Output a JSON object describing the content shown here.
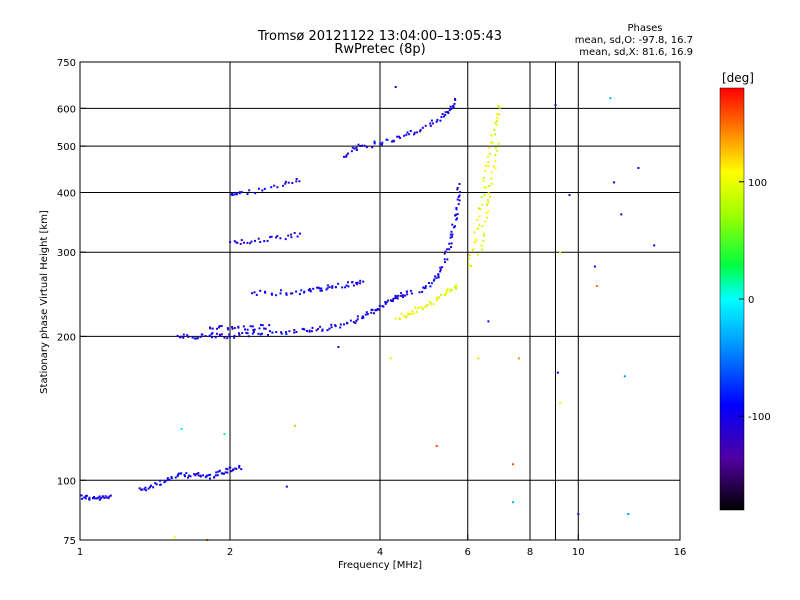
{
  "chart_data": {
    "type": "scatter",
    "title": "Tromsø 20121122 13:04:00–13:05:43",
    "subtitle": "RwPretec (8p)",
    "xlabel": "Frequency [MHz]",
    "ylabel": "Stationary phase Virtual Height [km]",
    "x_scale": "log",
    "y_scale": "log",
    "xlim": [
      1,
      16
    ],
    "ylim": [
      75,
      750
    ],
    "x_ticks": [
      1,
      2,
      4,
      6,
      8,
      10,
      16
    ],
    "x_tick_labels": [
      "1",
      "2",
      "4",
      "6",
      "8",
      "10",
      "16"
    ],
    "x_minor_ticks": [
      9
    ],
    "y_ticks": [
      75,
      100,
      200,
      300,
      400,
      500,
      600,
      750
    ],
    "y_tick_labels": [
      "75",
      "100",
      "200",
      "300",
      "400",
      "500",
      "600",
      "750"
    ],
    "grid": true,
    "stats": {
      "heading": "Phases",
      "line_o": "mean, sd,O: -97.8, 16.7",
      "line_x": "mean, sd,X:  81.6, 16.9"
    },
    "colorbar": {
      "label": "[deg]",
      "range": [
        -180,
        180
      ],
      "ticks": [
        100,
        0,
        -100
      ],
      "tick_labels": [
        "100",
        "0",
        "-100"
      ]
    },
    "traces": [
      {
        "kind": "curve",
        "phase": -100,
        "points": [
          [
            1.0,
            93
          ],
          [
            1.05,
            92
          ],
          [
            1.1,
            92
          ],
          [
            1.15,
            93
          ]
        ]
      },
      {
        "kind": "curve",
        "phase": -100,
        "points": [
          [
            1.3,
            96
          ],
          [
            1.4,
            98
          ],
          [
            1.5,
            101
          ],
          [
            1.6,
            103
          ],
          [
            1.7,
            103
          ],
          [
            1.8,
            102
          ],
          [
            1.9,
            104
          ],
          [
            2.0,
            106
          ],
          [
            2.1,
            107
          ]
        ]
      },
      {
        "kind": "curve",
        "phase": -100,
        "points": [
          [
            1.55,
            201
          ],
          [
            1.7,
            200
          ],
          [
            1.85,
            202
          ],
          [
            2.0,
            201
          ],
          [
            2.2,
            203
          ],
          [
            2.5,
            205
          ],
          [
            2.8,
            207
          ],
          [
            3.0,
            209
          ]
        ]
      },
      {
        "kind": "curve",
        "phase": -100,
        "points": [
          [
            1.8,
            208
          ],
          [
            2.0,
            210
          ],
          [
            2.2,
            209
          ],
          [
            2.4,
            211
          ]
        ]
      },
      {
        "kind": "curve",
        "phase": -100,
        "points": [
          [
            2.2,
            248
          ],
          [
            2.5,
            248
          ],
          [
            2.8,
            249
          ],
          [
            3.0,
            252
          ],
          [
            3.2,
            255
          ],
          [
            3.5,
            258
          ],
          [
            3.7,
            262
          ]
        ]
      },
      {
        "kind": "curve",
        "phase": -100,
        "points": [
          [
            2.0,
            315
          ],
          [
            2.2,
            318
          ],
          [
            2.5,
            322
          ],
          [
            2.8,
            330
          ]
        ]
      },
      {
        "kind": "curve",
        "phase": -100,
        "points": [
          [
            2.0,
            398
          ],
          [
            2.1,
            400
          ],
          [
            2.5,
            415
          ],
          [
            2.8,
            430
          ]
        ]
      },
      {
        "kind": "curve",
        "phase": -100,
        "points": [
          [
            3.0,
            208
          ],
          [
            3.3,
            212
          ],
          [
            3.6,
            218
          ],
          [
            3.8,
            225
          ],
          [
            4.0,
            232
          ],
          [
            4.2,
            240
          ],
          [
            4.4,
            245
          ],
          [
            4.6,
            250
          ]
        ]
      },
      {
        "kind": "curve",
        "phase": -100,
        "points": [
          [
            4.8,
            250
          ],
          [
            5.1,
            262
          ],
          [
            5.3,
            280
          ],
          [
            5.5,
            310
          ],
          [
            5.6,
            340
          ],
          [
            5.7,
            380
          ],
          [
            5.75,
            420
          ]
        ]
      },
      {
        "kind": "curve",
        "phase": -100,
        "points": [
          [
            3.4,
            480
          ],
          [
            3.6,
            500
          ],
          [
            4.0,
            510
          ],
          [
            4.4,
            525
          ],
          [
            4.8,
            545
          ],
          [
            5.2,
            570
          ],
          [
            5.5,
            600
          ],
          [
            5.7,
            630
          ]
        ]
      },
      {
        "kind": "curve",
        "phase": 100,
        "points": [
          [
            4.3,
            220
          ],
          [
            4.6,
            225
          ],
          [
            4.9,
            232
          ],
          [
            5.2,
            240
          ],
          [
            5.5,
            250
          ],
          [
            5.7,
            258
          ]
        ]
      },
      {
        "kind": "curve",
        "phase": 100,
        "points": [
          [
            6.0,
            280
          ],
          [
            6.2,
            330
          ],
          [
            6.4,
            400
          ],
          [
            6.6,
            480
          ],
          [
            6.8,
            560
          ],
          [
            6.9,
            620
          ]
        ]
      },
      {
        "kind": "curve",
        "phase": 100,
        "points": [
          [
            6.3,
            300
          ],
          [
            6.5,
            360
          ],
          [
            6.7,
            430
          ],
          [
            6.9,
            520
          ]
        ]
      }
    ],
    "scatter_points": [
      {
        "x": 1.55,
        "y": 76,
        "phase": 110
      },
      {
        "x": 1.8,
        "y": 75,
        "phase": 150
      },
      {
        "x": 1.6,
        "y": 128,
        "phase": 0
      },
      {
        "x": 1.95,
        "y": 125,
        "phase": 20
      },
      {
        "x": 2.6,
        "y": 97,
        "phase": -100
      },
      {
        "x": 2.7,
        "y": 130,
        "phase": 130
      },
      {
        "x": 3.3,
        "y": 190,
        "phase": -110
      },
      {
        "x": 4.2,
        "y": 180,
        "phase": 90
      },
      {
        "x": 4.3,
        "y": 665,
        "phase": -100
      },
      {
        "x": 5.2,
        "y": 118,
        "phase": 160
      },
      {
        "x": 6.3,
        "y": 180,
        "phase": 120
      },
      {
        "x": 6.6,
        "y": 215,
        "phase": -100
      },
      {
        "x": 7.4,
        "y": 108,
        "phase": 160
      },
      {
        "x": 7.4,
        "y": 90,
        "phase": -30
      },
      {
        "x": 7.6,
        "y": 180,
        "phase": 140
      },
      {
        "x": 9.0,
        "y": 610,
        "phase": -100
      },
      {
        "x": 9.2,
        "y": 300,
        "phase": 110
      },
      {
        "x": 9.1,
        "y": 168,
        "phase": -100
      },
      {
        "x": 9.2,
        "y": 145,
        "phase": 100
      },
      {
        "x": 9.6,
        "y": 395,
        "phase": -100
      },
      {
        "x": 10.0,
        "y": 85,
        "phase": -100
      },
      {
        "x": 10.8,
        "y": 280,
        "phase": -100
      },
      {
        "x": 10.9,
        "y": 255,
        "phase": 150
      },
      {
        "x": 11.6,
        "y": 630,
        "phase": -30
      },
      {
        "x": 11.8,
        "y": 420,
        "phase": -100
      },
      {
        "x": 12.2,
        "y": 360,
        "phase": -100
      },
      {
        "x": 12.4,
        "y": 165,
        "phase": -40
      },
      {
        "x": 12.6,
        "y": 85,
        "phase": -40
      },
      {
        "x": 13.2,
        "y": 450,
        "phase": -100
      },
      {
        "x": 14.2,
        "y": 310,
        "phase": -100
      }
    ]
  }
}
